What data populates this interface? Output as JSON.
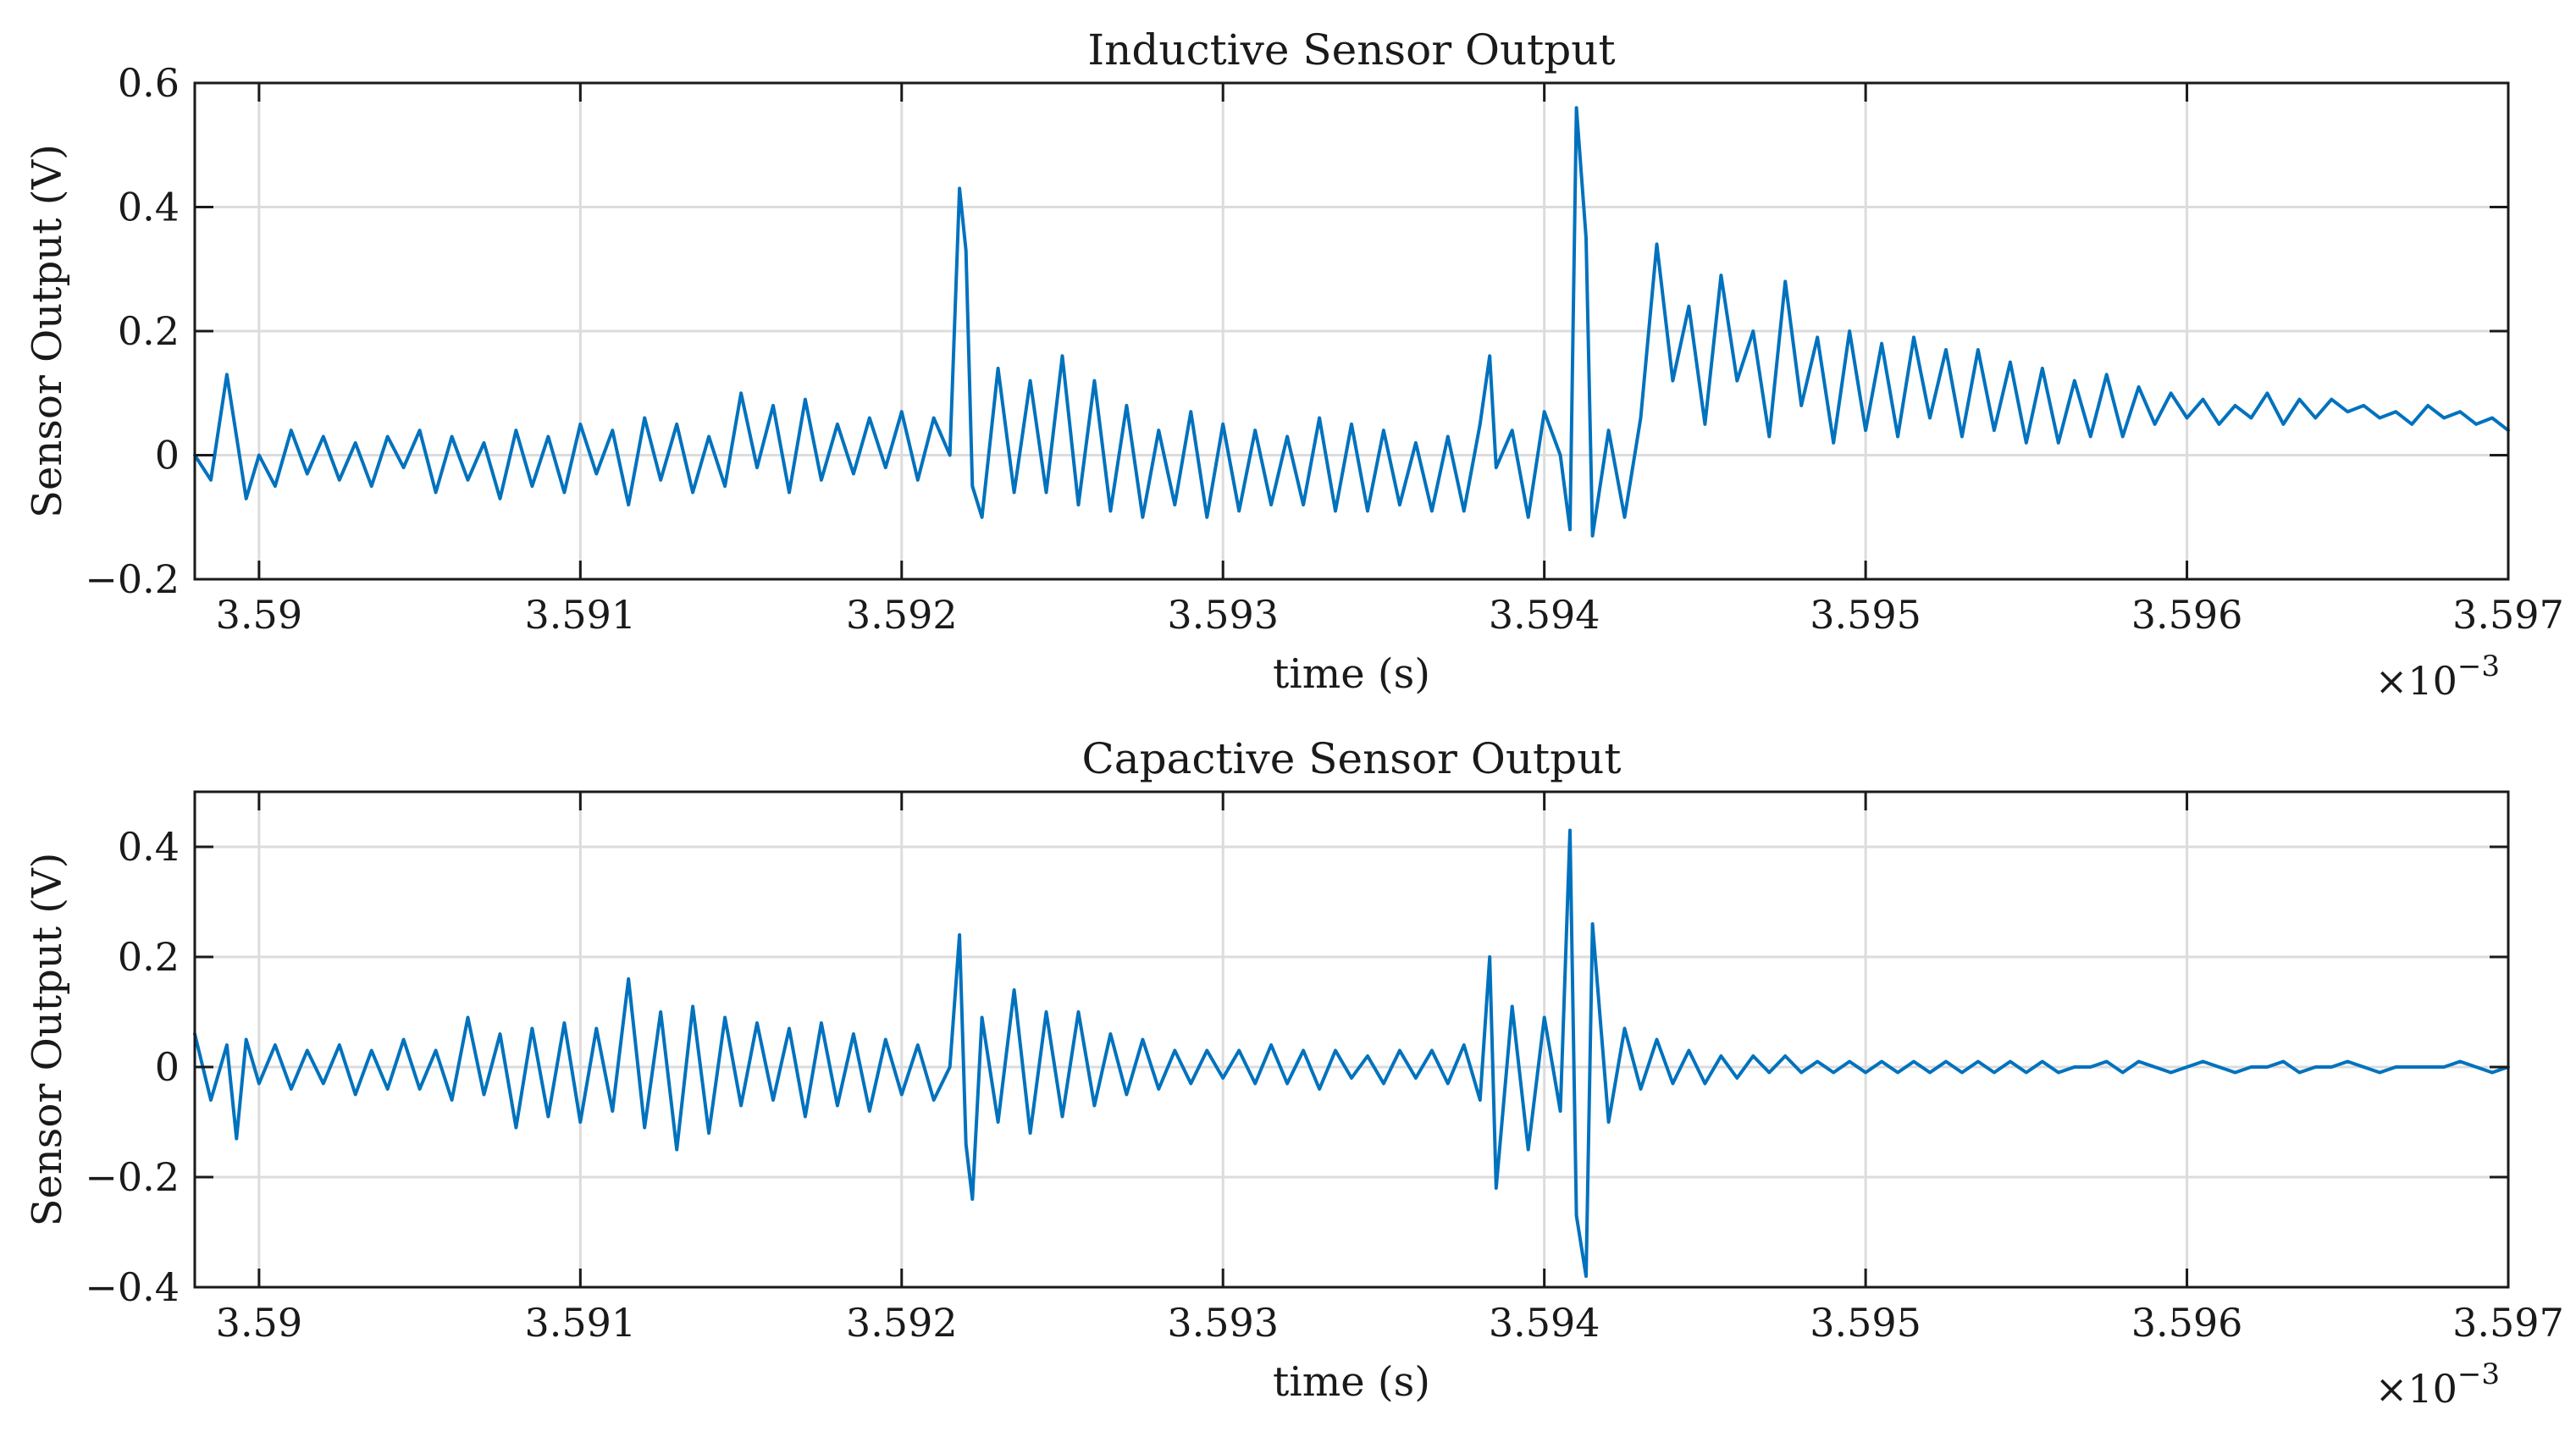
{
  "chart_data": [
    {
      "type": "line",
      "title": "Inductive Sensor Output",
      "xlabel": "time (s)",
      "ylabel": "Sensor Output (V)",
      "x_multiplier_label": "×10",
      "x_multiplier_exponent": "−3",
      "xlim": [
        3.5898,
        3.597
      ],
      "ylim": [
        -0.2,
        0.6
      ],
      "xticks": [
        3.59,
        3.591,
        3.592,
        3.593,
        3.594,
        3.595,
        3.596,
        3.597
      ],
      "xtick_labels": [
        "3.59",
        "3.591",
        "3.592",
        "3.593",
        "3.594",
        "3.595",
        "3.596",
        "3.597"
      ],
      "yticks": [
        -0.2,
        0,
        0.2,
        0.4,
        0.6
      ],
      "ytick_labels": [
        "−0.2",
        "0",
        "0.2",
        "0.4",
        "0.6"
      ],
      "grid": true,
      "series": [
        {
          "name": "inductive",
          "color": "#0072BD",
          "x": [
            3.5898,
            3.58985,
            3.5899,
            3.58993,
            3.58996,
            3.59,
            3.59005,
            3.5901,
            3.59015,
            3.5902,
            3.59025,
            3.5903,
            3.59035,
            3.5904,
            3.59045,
            3.5905,
            3.59055,
            3.5906,
            3.59065,
            3.5907,
            3.59075,
            3.5908,
            3.59085,
            3.5909,
            3.59095,
            3.591,
            3.59105,
            3.5911,
            3.59115,
            3.5912,
            3.59125,
            3.5913,
            3.59135,
            3.5914,
            3.59145,
            3.5915,
            3.59155,
            3.5916,
            3.59165,
            3.5917,
            3.59175,
            3.5918,
            3.59185,
            3.5919,
            3.59195,
            3.592,
            3.59205,
            3.5921,
            3.59215,
            3.59218,
            3.5922,
            3.59222,
            3.59225,
            3.5923,
            3.59235,
            3.5924,
            3.59245,
            3.5925,
            3.59255,
            3.5926,
            3.59265,
            3.5927,
            3.59275,
            3.5928,
            3.59285,
            3.5929,
            3.59295,
            3.593,
            3.59305,
            3.5931,
            3.59315,
            3.5932,
            3.59325,
            3.5933,
            3.59335,
            3.5934,
            3.59345,
            3.5935,
            3.59355,
            3.5936,
            3.59365,
            3.5937,
            3.59375,
            3.5938,
            3.59383,
            3.59385,
            3.5939,
            3.59395,
            3.594,
            3.59405,
            3.59408,
            3.5941,
            3.59413,
            3.59415,
            3.5942,
            3.59425,
            3.5943,
            3.59435,
            3.5944,
            3.59445,
            3.5945,
            3.59455,
            3.5946,
            3.59465,
            3.5947,
            3.59475,
            3.5948,
            3.59485,
            3.5949,
            3.59495,
            3.595,
            3.59505,
            3.5951,
            3.59515,
            3.5952,
            3.59525,
            3.5953,
            3.59535,
            3.5954,
            3.59545,
            3.5955,
            3.59555,
            3.5956,
            3.59565,
            3.5957,
            3.59575,
            3.5958,
            3.59585,
            3.5959,
            3.59595,
            3.596,
            3.59605,
            3.5961,
            3.59615,
            3.5962,
            3.59625,
            3.5963,
            3.59635,
            3.5964,
            3.59645,
            3.5965,
            3.59655,
            3.5966,
            3.59665,
            3.5967,
            3.59675,
            3.5968,
            3.59685,
            3.5969,
            3.59695,
            3.597
          ],
          "y": [
            0.0,
            -0.04,
            0.13,
            0.03,
            -0.07,
            0.0,
            -0.05,
            0.04,
            -0.03,
            0.03,
            -0.04,
            0.02,
            -0.05,
            0.03,
            -0.02,
            0.04,
            -0.06,
            0.03,
            -0.04,
            0.02,
            -0.07,
            0.04,
            -0.05,
            0.03,
            -0.06,
            0.05,
            -0.03,
            0.04,
            -0.08,
            0.06,
            -0.04,
            0.05,
            -0.06,
            0.03,
            -0.05,
            0.1,
            -0.02,
            0.08,
            -0.06,
            0.09,
            -0.04,
            0.05,
            -0.03,
            0.06,
            -0.02,
            0.07,
            -0.04,
            0.06,
            0.0,
            0.43,
            0.33,
            -0.05,
            -0.1,
            0.14,
            -0.06,
            0.12,
            -0.06,
            0.16,
            -0.08,
            0.12,
            -0.09,
            0.08,
            -0.1,
            0.04,
            -0.08,
            0.07,
            -0.1,
            0.05,
            -0.09,
            0.04,
            -0.08,
            0.03,
            -0.08,
            0.06,
            -0.09,
            0.05,
            -0.09,
            0.04,
            -0.08,
            0.02,
            -0.09,
            0.03,
            -0.09,
            0.05,
            0.16,
            -0.02,
            0.04,
            -0.1,
            0.07,
            0.0,
            -0.12,
            0.56,
            0.35,
            -0.13,
            0.04,
            -0.1,
            0.06,
            0.34,
            0.12,
            0.24,
            0.05,
            0.29,
            0.12,
            0.2,
            0.03,
            0.28,
            0.08,
            0.19,
            0.02,
            0.2,
            0.04,
            0.18,
            0.03,
            0.19,
            0.06,
            0.17,
            0.03,
            0.17,
            0.04,
            0.15,
            0.02,
            0.14,
            0.02,
            0.12,
            0.03,
            0.13,
            0.03,
            0.11,
            0.05,
            0.1,
            0.06,
            0.09,
            0.05,
            0.08,
            0.06,
            0.1,
            0.05,
            0.09,
            0.06,
            0.09,
            0.07,
            0.08,
            0.06,
            0.07,
            0.05,
            0.08,
            0.06,
            0.07,
            0.05,
            0.06,
            0.04
          ]
        }
      ]
    },
    {
      "type": "line",
      "title": "Capactive Sensor Output",
      "xlabel": "time (s)",
      "ylabel": "Sensor Output (V)",
      "x_multiplier_label": "×10",
      "x_multiplier_exponent": "−3",
      "xlim": [
        3.5898,
        3.597
      ],
      "ylim": [
        -0.4,
        0.5
      ],
      "xticks": [
        3.59,
        3.591,
        3.592,
        3.593,
        3.594,
        3.595,
        3.596,
        3.597
      ],
      "xtick_labels": [
        "3.59",
        "3.591",
        "3.592",
        "3.593",
        "3.594",
        "3.595",
        "3.596",
        "3.597"
      ],
      "yticks": [
        -0.4,
        -0.2,
        0,
        0.2,
        0.4
      ],
      "ytick_labels": [
        "−0.4",
        "−0.2",
        "0",
        "0.2",
        "0.4"
      ],
      "grid": true,
      "series": [
        {
          "name": "capacitive",
          "color": "#0072BD",
          "x": [
            3.5898,
            3.58985,
            3.5899,
            3.58993,
            3.58996,
            3.59,
            3.59005,
            3.5901,
            3.59015,
            3.5902,
            3.59025,
            3.5903,
            3.59035,
            3.5904,
            3.59045,
            3.5905,
            3.59055,
            3.5906,
            3.59065,
            3.5907,
            3.59075,
            3.5908,
            3.59085,
            3.5909,
            3.59095,
            3.591,
            3.59105,
            3.5911,
            3.59115,
            3.5912,
            3.59125,
            3.5913,
            3.59135,
            3.5914,
            3.59145,
            3.5915,
            3.59155,
            3.5916,
            3.59165,
            3.5917,
            3.59175,
            3.5918,
            3.59185,
            3.5919,
            3.59195,
            3.592,
            3.59205,
            3.5921,
            3.59215,
            3.59218,
            3.5922,
            3.59222,
            3.59225,
            3.5923,
            3.59235,
            3.5924,
            3.59245,
            3.5925,
            3.59255,
            3.5926,
            3.59265,
            3.5927,
            3.59275,
            3.5928,
            3.59285,
            3.5929,
            3.59295,
            3.593,
            3.59305,
            3.5931,
            3.59315,
            3.5932,
            3.59325,
            3.5933,
            3.59335,
            3.5934,
            3.59345,
            3.5935,
            3.59355,
            3.5936,
            3.59365,
            3.5937,
            3.59375,
            3.5938,
            3.59383,
            3.59385,
            3.5939,
            3.59395,
            3.594,
            3.59405,
            3.59408,
            3.5941,
            3.59413,
            3.59415,
            3.5942,
            3.59425,
            3.5943,
            3.59435,
            3.5944,
            3.59445,
            3.5945,
            3.59455,
            3.5946,
            3.59465,
            3.5947,
            3.59475,
            3.5948,
            3.59485,
            3.5949,
            3.59495,
            3.595,
            3.59505,
            3.5951,
            3.59515,
            3.5952,
            3.59525,
            3.5953,
            3.59535,
            3.5954,
            3.59545,
            3.5955,
            3.59555,
            3.5956,
            3.59565,
            3.5957,
            3.59575,
            3.5958,
            3.59585,
            3.5959,
            3.59595,
            3.596,
            3.59605,
            3.5961,
            3.59615,
            3.5962,
            3.59625,
            3.5963,
            3.59635,
            3.5964,
            3.59645,
            3.5965,
            3.59655,
            3.5966,
            3.59665,
            3.5967,
            3.59675,
            3.5968,
            3.59685,
            3.5969,
            3.59695,
            3.597
          ],
          "y": [
            0.06,
            -0.06,
            0.04,
            -0.13,
            0.05,
            -0.03,
            0.04,
            -0.04,
            0.03,
            -0.03,
            0.04,
            -0.05,
            0.03,
            -0.04,
            0.05,
            -0.04,
            0.03,
            -0.06,
            0.09,
            -0.05,
            0.06,
            -0.11,
            0.07,
            -0.09,
            0.08,
            -0.1,
            0.07,
            -0.08,
            0.16,
            -0.11,
            0.1,
            -0.15,
            0.11,
            -0.12,
            0.09,
            -0.07,
            0.08,
            -0.06,
            0.07,
            -0.09,
            0.08,
            -0.07,
            0.06,
            -0.08,
            0.05,
            -0.05,
            0.04,
            -0.06,
            0.0,
            0.24,
            -0.14,
            -0.24,
            0.09,
            -0.1,
            0.14,
            -0.12,
            0.1,
            -0.09,
            0.1,
            -0.07,
            0.06,
            -0.05,
            0.05,
            -0.04,
            0.03,
            -0.03,
            0.03,
            -0.02,
            0.03,
            -0.03,
            0.04,
            -0.03,
            0.03,
            -0.04,
            0.03,
            -0.02,
            0.02,
            -0.03,
            0.03,
            -0.02,
            0.03,
            -0.03,
            0.04,
            -0.06,
            0.2,
            -0.22,
            0.11,
            -0.15,
            0.09,
            -0.08,
            0.43,
            -0.27,
            -0.38,
            0.26,
            -0.1,
            0.07,
            -0.04,
            0.05,
            -0.03,
            0.03,
            -0.03,
            0.02,
            -0.02,
            0.02,
            -0.01,
            0.02,
            -0.01,
            0.01,
            -0.01,
            0.01,
            -0.01,
            0.01,
            -0.01,
            0.01,
            -0.01,
            0.01,
            -0.01,
            0.01,
            -0.01,
            0.01,
            -0.01,
            0.01,
            -0.01,
            0.0,
            0.0,
            0.01,
            -0.01,
            0.01,
            0.0,
            -0.01,
            0.0,
            0.01,
            0.0,
            -0.01,
            0.0,
            0.0,
            0.01,
            -0.01,
            0.0,
            0.0,
            0.01,
            0.0,
            -0.01,
            0.0,
            0.0,
            0.0,
            0.0,
            0.01,
            0.0,
            -0.01,
            0.0
          ]
        }
      ]
    }
  ]
}
